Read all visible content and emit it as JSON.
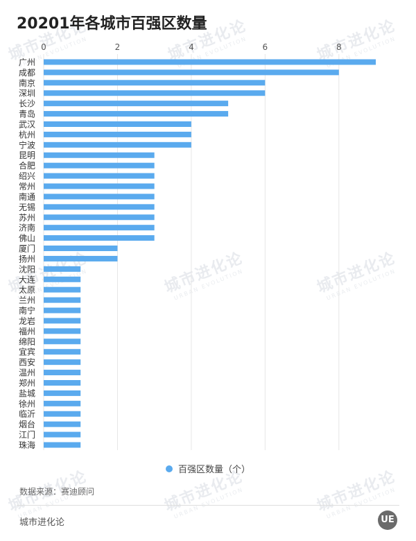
{
  "title": "20201年各城市百强区数量",
  "source": "数据来源：赛迪顾问",
  "footer_brand": "城市进化论",
  "logo_text": "UE",
  "watermark": {
    "cn": "城市进化论",
    "en": "URBAN EVOLUTION"
  },
  "colors": {
    "bar": "#5aaaee",
    "grid": "#e6e6e6",
    "text": "#333333"
  },
  "chart_data": {
    "type": "bar",
    "orientation": "horizontal",
    "categories": [
      "广州",
      "成都",
      "南京",
      "深圳",
      "长沙",
      "青岛",
      "武汉",
      "杭州",
      "宁波",
      "昆明",
      "合肥",
      "绍兴",
      "常州",
      "南通",
      "无锡",
      "苏州",
      "济南",
      "佛山",
      "厦门",
      "扬州",
      "沈阳",
      "大连",
      "太原",
      "兰州",
      "南宁",
      "龙岩",
      "福州",
      "绵阳",
      "宜宾",
      "西安",
      "温州",
      "郑州",
      "盐城",
      "徐州",
      "临沂",
      "烟台",
      "江门",
      "珠海"
    ],
    "series": [
      {
        "name": "百强区数量（个）",
        "values": [
          9,
          8,
          6,
          6,
          5,
          5,
          4,
          4,
          4,
          3,
          3,
          3,
          3,
          3,
          3,
          3,
          3,
          3,
          2,
          2,
          1,
          1,
          1,
          1,
          1,
          1,
          1,
          1,
          1,
          1,
          1,
          1,
          1,
          1,
          1,
          1,
          1,
          1
        ]
      }
    ],
    "xlim": [
      0,
      9
    ],
    "xticks": [
      "0",
      "2",
      "4",
      "6",
      "8"
    ],
    "grid": true,
    "legend_position": "bottom"
  }
}
